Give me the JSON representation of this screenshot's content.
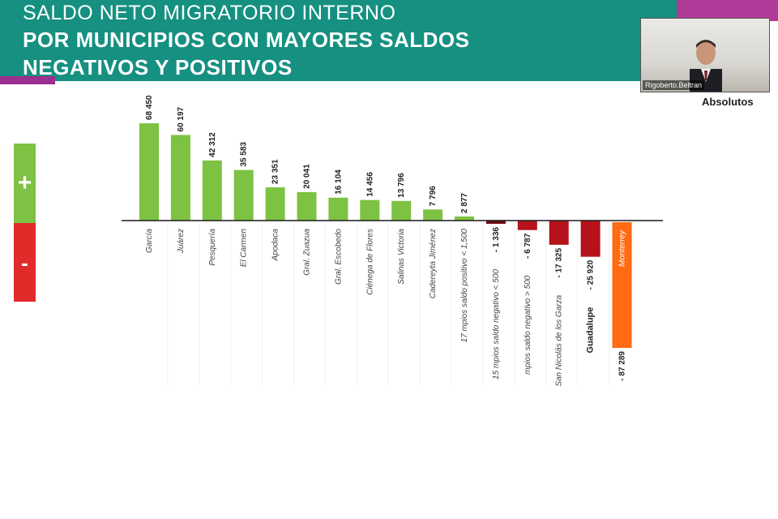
{
  "slide": {
    "title_line_1": "SALDO NETO MIGRATORIO  INTERNO",
    "title_line_2": "POR MUNICIPIOS CON MAYORES SALDOS",
    "title_line_3": "NEGATIVOS Y POSITIVOS",
    "unit_label": "Absolutos",
    "plus_sign": "+",
    "minus_sign": "-",
    "colors": {
      "header": "#159081",
      "accent": "#9c2f8f",
      "positive": "#7dc242",
      "negative": "#e12b2b",
      "negative_bar": "#b5121b",
      "highlight_bar": "#ff6a13"
    }
  },
  "video": {
    "participant_name": "Rigoberto.Beltran"
  },
  "chart_data": {
    "type": "bar",
    "title": "",
    "xlabel": "",
    "ylabel": "",
    "grid": false,
    "legend": "none",
    "ylim": [
      -87289,
      68450
    ],
    "categories": [
      "García",
      "Juárez",
      "Pesquería",
      "El Carmen",
      "Apodaca",
      "Gral. Zuazua",
      "Gral. Escobedo",
      "Ciénega de Flores",
      "Salinas Victoria",
      "Cadereyta Jiménez",
      "17 mpios saldo positivo < 1,500",
      "15 mpios saldo negativo < 500",
      "mpios saldo negativo > 500",
      "San Nicolás de los Garza",
      "Guadalupe",
      "Monterrey"
    ],
    "values": [
      68450,
      60197,
      42312,
      35583,
      23351,
      20041,
      16104,
      14456,
      13796,
      7796,
      2877,
      -1336,
      -6787,
      -17325,
      -25920,
      -87289
    ],
    "value_labels": [
      "68 450",
      "60 197",
      "42 312",
      "35 583",
      "23 351",
      "20 041",
      "16 104",
      "14 456",
      "13 796",
      "7 796",
      "2 877",
      "- 1 336",
      "- 6 787",
      "- 17 325",
      "- 25 920",
      "- 87 289"
    ]
  }
}
